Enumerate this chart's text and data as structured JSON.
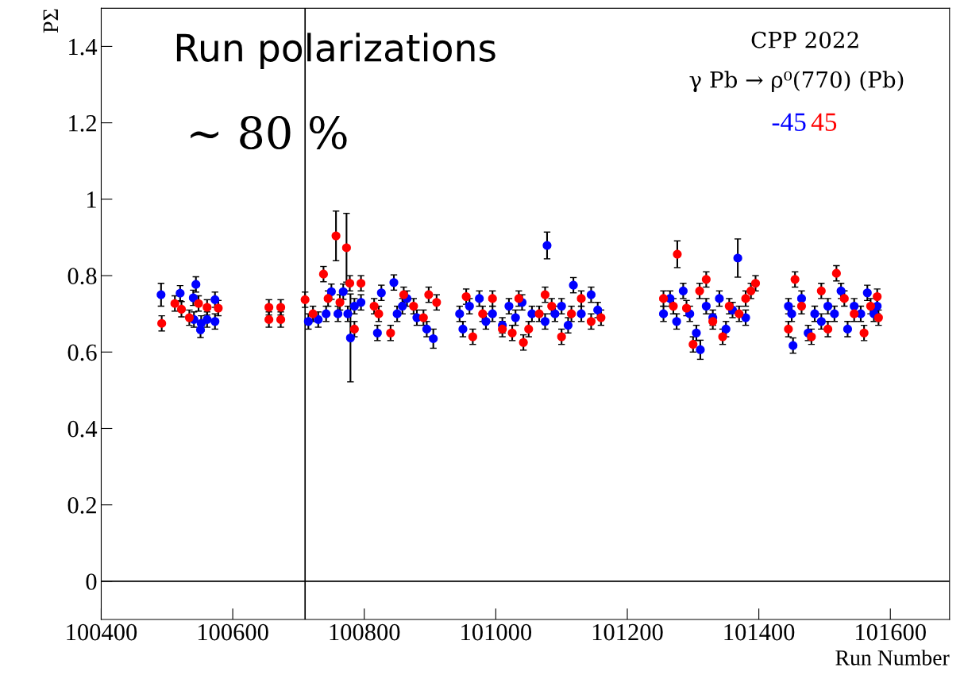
{
  "chart_data": {
    "type": "scatter",
    "xlabel": "Run Number",
    "ylabel": "PΣ",
    "xlim": [
      100400,
      101690
    ],
    "ylim": [
      -0.1,
      1.5
    ],
    "xticks": [
      100400,
      100600,
      100800,
      101000,
      101200,
      101400,
      101600
    ],
    "yticks": [
      0,
      0.2,
      0.4,
      0.6,
      0.8,
      1,
      1.2,
      1.4
    ],
    "grid": false,
    "legend": "top right",
    "marker": "circle",
    "annotations": [
      "Run polarizations",
      "∼ 80 %",
      "CPP 2022",
      "γ Pb → ρ⁰(770) (Pb)"
    ],
    "ref_lines": [
      {
        "axis": "x",
        "value": 100710,
        "color": "#000000"
      },
      {
        "axis": "y",
        "value": 0,
        "color": "#000000"
      }
    ],
    "series": [
      {
        "name": "-45",
        "color": "#0000ff",
        "x": [
          100491,
          100520,
          100544,
          100540,
          100573,
          100541,
          100552,
          100561,
          100573,
          100551,
          100715,
          100730,
          100742,
          100750,
          100760,
          100768,
          100775,
          100779,
          100785,
          100795,
          100820,
          100826,
          100845,
          100850,
          100858,
          100865,
          100880,
          100895,
          100905,
          100945,
          100950,
          100960,
          100975,
          100985,
          100995,
          101010,
          101020,
          101030,
          101040,
          101055,
          101075,
          101078,
          101090,
          101100,
          101110,
          101118,
          101130,
          101145,
          101155,
          101255,
          101265,
          101275,
          101285,
          101295,
          101305,
          101311,
          101320,
          101330,
          101340,
          101350,
          101360,
          101368,
          101380,
          101445,
          101450,
          101452,
          101465,
          101475,
          101485,
          101495,
          101505,
          101515,
          101525,
          101535,
          101545,
          101555,
          101565,
          101575,
          101580
        ],
        "values": [
          0.75,
          0.754,
          0.777,
          0.742,
          0.737,
          0.685,
          0.675,
          0.685,
          0.68,
          0.658,
          0.68,
          0.685,
          0.7,
          0.758,
          0.7,
          0.758,
          0.7,
          0.637,
          0.72,
          0.73,
          0.65,
          0.755,
          0.782,
          0.7,
          0.72,
          0.74,
          0.69,
          0.66,
          0.635,
          0.7,
          0.66,
          0.72,
          0.74,
          0.68,
          0.7,
          0.67,
          0.72,
          0.69,
          0.73,
          0.7,
          0.68,
          0.879,
          0.7,
          0.72,
          0.67,
          0.775,
          0.7,
          0.75,
          0.71,
          0.7,
          0.74,
          0.68,
          0.76,
          0.7,
          0.65,
          0.606,
          0.72,
          0.69,
          0.74,
          0.66,
          0.71,
          0.846,
          0.69,
          0.72,
          0.7,
          0.617,
          0.74,
          0.65,
          0.7,
          0.68,
          0.72,
          0.7,
          0.76,
          0.66,
          0.72,
          0.7,
          0.755,
          0.7,
          0.72
        ],
        "errors": [
          0.03,
          0.02,
          0.02,
          0.02,
          0.02,
          0.02,
          0.02,
          0.02,
          0.02,
          0.02,
          0.02,
          0.02,
          0.02,
          0.02,
          0.02,
          0.02,
          0.02,
          0.115,
          0.02,
          0.02,
          0.02,
          0.02,
          0.02,
          0.02,
          0.02,
          0.02,
          0.02,
          0.02,
          0.025,
          0.02,
          0.02,
          0.02,
          0.02,
          0.02,
          0.02,
          0.02,
          0.02,
          0.02,
          0.02,
          0.02,
          0.02,
          0.035,
          0.02,
          0.02,
          0.02,
          0.02,
          0.02,
          0.02,
          0.02,
          0.02,
          0.02,
          0.02,
          0.02,
          0.02,
          0.02,
          0.025,
          0.02,
          0.02,
          0.02,
          0.02,
          0.02,
          0.05,
          0.02,
          0.02,
          0.02,
          0.02,
          0.02,
          0.02,
          0.02,
          0.02,
          0.02,
          0.02,
          0.02,
          0.02,
          0.02,
          0.02,
          0.02,
          0.02,
          0.02
        ]
      },
      {
        "name": "45",
        "color": "#ff0000",
        "x": [
          100492,
          100512,
          100522,
          100534,
          100548,
          100561,
          100578,
          100655,
          100673,
          100655,
          100673,
          100710,
          100722,
          100738,
          100745,
          100757,
          100763,
          100773,
          100778,
          100785,
          100795,
          100815,
          100822,
          100840,
          100860,
          100875,
          100890,
          100898,
          100910,
          100955,
          100965,
          100980,
          100995,
          101010,
          101025,
          101035,
          101042,
          101050,
          101066,
          101075,
          101085,
          101100,
          101115,
          101130,
          101145,
          101160,
          101255,
          101270,
          101276,
          101290,
          101300,
          101310,
          101320,
          101330,
          101345,
          101355,
          101370,
          101380,
          101388,
          101395,
          101445,
          101455,
          101465,
          101480,
          101495,
          101505,
          101518,
          101530,
          101545,
          101560,
          101570,
          101580,
          101582
        ],
        "values": [
          0.675,
          0.727,
          0.712,
          0.69,
          0.727,
          0.717,
          0.715,
          0.717,
          0.717,
          0.685,
          0.685,
          0.737,
          0.7,
          0.804,
          0.74,
          0.904,
          0.73,
          0.873,
          0.78,
          0.66,
          0.78,
          0.72,
          0.7,
          0.65,
          0.75,
          0.72,
          0.69,
          0.75,
          0.73,
          0.745,
          0.64,
          0.7,
          0.74,
          0.66,
          0.65,
          0.74,
          0.625,
          0.66,
          0.7,
          0.75,
          0.72,
          0.64,
          0.7,
          0.74,
          0.68,
          0.69,
          0.74,
          0.72,
          0.856,
          0.715,
          0.62,
          0.76,
          0.79,
          0.68,
          0.64,
          0.72,
          0.7,
          0.74,
          0.76,
          0.78,
          0.66,
          0.79,
          0.72,
          0.64,
          0.76,
          0.66,
          0.806,
          0.74,
          0.7,
          0.65,
          0.72,
          0.745,
          0.69
        ],
        "errors": [
          0.02,
          0.02,
          0.02,
          0.02,
          0.02,
          0.02,
          0.02,
          0.02,
          0.02,
          0.02,
          0.02,
          0.02,
          0.02,
          0.02,
          0.02,
          0.065,
          0.02,
          0.09,
          0.02,
          0.02,
          0.02,
          0.02,
          0.02,
          0.02,
          0.02,
          0.02,
          0.02,
          0.02,
          0.02,
          0.02,
          0.02,
          0.02,
          0.02,
          0.02,
          0.02,
          0.02,
          0.02,
          0.02,
          0.02,
          0.02,
          0.02,
          0.02,
          0.02,
          0.02,
          0.02,
          0.02,
          0.02,
          0.02,
          0.035,
          0.02,
          0.02,
          0.02,
          0.02,
          0.02,
          0.02,
          0.02,
          0.02,
          0.02,
          0.02,
          0.02,
          0.02,
          0.02,
          0.02,
          0.02,
          0.02,
          0.02,
          0.02,
          0.02,
          0.02,
          0.02,
          0.02,
          0.02,
          0.02
        ]
      }
    ]
  }
}
